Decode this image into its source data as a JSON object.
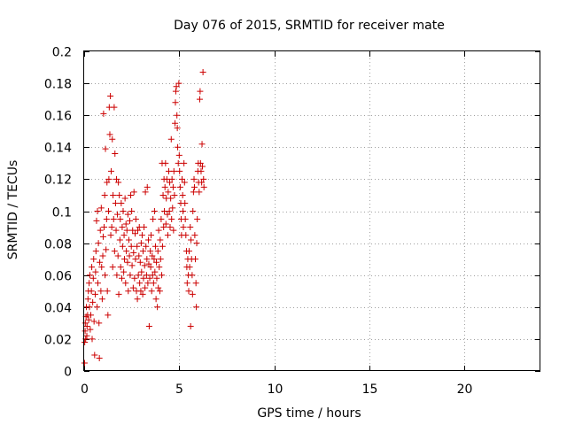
{
  "chart_data": {
    "type": "scatter",
    "title": "Day 076 of 2015, SRMTID for receiver mate",
    "xlabel": "GPS time / hours",
    "ylabel": "SRMTID / TECUs",
    "xlim": [
      0,
      24
    ],
    "ylim": [
      0,
      0.2
    ],
    "xticks": [
      0,
      5,
      10,
      15,
      20
    ],
    "xtick_labels": [
      "0",
      "5",
      "10",
      "15",
      "20"
    ],
    "yticks": [
      0,
      0.02,
      0.04,
      0.06,
      0.08,
      0.1,
      0.12,
      0.14,
      0.16,
      0.18,
      0.2
    ],
    "ytick_labels": [
      "0",
      "0.02",
      "0.04",
      "0.06",
      "0.08",
      "0.1",
      "0.12",
      "0.14",
      "0.16",
      "0.18",
      "0.2"
    ],
    "grid": true,
    "marker": "+",
    "color": "#cc0000",
    "series": [
      {
        "name": "SRMTID",
        "note": "dense cloud of observations from 0 to ~6.3 h (sample of representative points)",
        "points": [
          [
            0.02,
            0.005
          ],
          [
            0.03,
            0.018
          ],
          [
            0.05,
            0.025
          ],
          [
            0.06,
            0.03
          ],
          [
            0.08,
            0.02
          ],
          [
            0.1,
            0.034
          ],
          [
            0.12,
            0.04
          ],
          [
            0.14,
            0.022
          ],
          [
            0.15,
            0.028
          ],
          [
            0.18,
            0.035
          ],
          [
            0.2,
            0.045
          ],
          [
            0.22,
            0.05
          ],
          [
            0.24,
            0.032
          ],
          [
            0.26,
            0.055
          ],
          [
            0.28,
            0.04
          ],
          [
            0.3,
            0.06
          ],
          [
            0.32,
            0.026
          ],
          [
            0.35,
            0.035
          ],
          [
            0.38,
            0.05
          ],
          [
            0.4,
            0.065
          ],
          [
            0.42,
            0.02
          ],
          [
            0.45,
            0.043
          ],
          [
            0.48,
            0.058
          ],
          [
            0.5,
            0.07
          ],
          [
            0.52,
            0.031
          ],
          [
            0.55,
            0.01
          ],
          [
            0.58,
            0.048
          ],
          [
            0.6,
            0.062
          ],
          [
            0.62,
            0.075
          ],
          [
            0.65,
            0.094
          ],
          [
            0.68,
            0.04
          ],
          [
            0.7,
            0.1
          ],
          [
            0.72,
            0.055
          ],
          [
            0.75,
            0.08
          ],
          [
            0.78,
            0.03
          ],
          [
            0.8,
            0.008
          ],
          [
            0.82,
            0.068
          ],
          [
            0.85,
            0.088
          ],
          [
            0.88,
            0.05
          ],
          [
            0.9,
            0.102
          ],
          [
            0.92,
            0.065
          ],
          [
            0.95,
            0.045
          ],
          [
            0.98,
            0.072
          ],
          [
            1.0,
            0.084
          ],
          [
            1.02,
            0.161
          ],
          [
            1.05,
            0.09
          ],
          [
            1.08,
            0.11
          ],
          [
            1.1,
            0.06
          ],
          [
            1.12,
            0.139
          ],
          [
            1.15,
            0.076
          ],
          [
            1.18,
            0.095
          ],
          [
            1.2,
            0.118
          ],
          [
            1.22,
            0.05
          ],
          [
            1.25,
            0.035
          ],
          [
            1.28,
            0.1
          ],
          [
            1.3,
            0.12
          ],
          [
            1.32,
            0.165
          ],
          [
            1.35,
            0.148
          ],
          [
            1.38,
            0.172
          ],
          [
            1.4,
            0.085
          ],
          [
            1.42,
            0.125
          ],
          [
            1.45,
            0.09
          ],
          [
            1.48,
            0.145
          ],
          [
            1.5,
            0.065
          ],
          [
            1.52,
            0.11
          ],
          [
            1.55,
            0.095
          ],
          [
            1.58,
            0.165
          ],
          [
            1.6,
            0.075
          ],
          [
            1.62,
            0.136
          ],
          [
            1.65,
            0.105
          ],
          [
            1.68,
            0.088
          ],
          [
            1.7,
            0.12
          ],
          [
            1.72,
            0.06
          ],
          [
            1.75,
            0.098
          ],
          [
            1.78,
            0.072
          ],
          [
            1.8,
            0.118
          ],
          [
            1.82,
            0.048
          ],
          [
            1.85,
            0.11
          ],
          [
            1.88,
            0.082
          ],
          [
            1.9,
            0.095
          ],
          [
            1.92,
            0.065
          ],
          [
            1.95,
            0.105
          ],
          [
            1.98,
            0.058
          ],
          [
            2.0,
            0.09
          ],
          [
            2.02,
            0.078
          ],
          [
            2.05,
            0.1
          ],
          [
            2.08,
            0.062
          ],
          [
            2.1,
            0.085
          ],
          [
            2.12,
            0.07
          ],
          [
            2.15,
            0.108
          ],
          [
            2.18,
            0.055
          ],
          [
            2.2,
            0.092
          ],
          [
            2.22,
            0.075
          ],
          [
            2.25,
            0.088
          ],
          [
            2.28,
            0.068
          ],
          [
            2.3,
            0.098
          ],
          [
            2.32,
            0.05
          ],
          [
            2.35,
            0.082
          ],
          [
            2.38,
            0.072
          ],
          [
            2.4,
            0.094
          ],
          [
            2.42,
            0.06
          ],
          [
            2.45,
            0.11
          ],
          [
            2.48,
            0.078
          ],
          [
            2.5,
            0.1
          ],
          [
            2.52,
            0.066
          ],
          [
            2.55,
            0.088
          ],
          [
            2.58,
            0.052
          ],
          [
            2.6,
            0.074
          ],
          [
            2.62,
            0.112
          ],
          [
            2.65,
            0.058
          ],
          [
            2.68,
            0.086
          ],
          [
            2.7,
            0.07
          ],
          [
            2.72,
            0.095
          ],
          [
            2.75,
            0.05
          ],
          [
            2.78,
            0.078
          ],
          [
            2.8,
            0.045
          ],
          [
            2.82,
            0.088
          ],
          [
            2.85,
            0.06
          ],
          [
            2.88,
            0.072
          ],
          [
            2.9,
            0.09
          ],
          [
            2.92,
            0.055
          ],
          [
            2.95,
            0.068
          ],
          [
            2.98,
            0.05
          ],
          [
            3.0,
            0.08
          ],
          [
            3.02,
            0.062
          ],
          [
            3.05,
            0.085
          ],
          [
            3.08,
            0.048
          ],
          [
            3.1,
            0.075
          ],
          [
            3.12,
            0.058
          ],
          [
            3.15,
            0.09
          ],
          [
            3.18,
            0.066
          ],
          [
            3.2,
            0.052
          ],
          [
            3.22,
            0.112
          ],
          [
            3.25,
            0.078
          ],
          [
            3.28,
            0.06
          ],
          [
            3.3,
            0.07
          ],
          [
            3.32,
            0.115
          ],
          [
            3.35,
            0.055
          ],
          [
            3.38,
            0.082
          ],
          [
            3.4,
            0.067
          ],
          [
            3.42,
            0.028
          ],
          [
            3.45,
            0.058
          ],
          [
            3.48,
            0.075
          ],
          [
            3.5,
            0.065
          ],
          [
            3.52,
            0.085
          ],
          [
            3.55,
            0.05
          ],
          [
            3.58,
            0.072
          ],
          [
            3.6,
            0.06
          ],
          [
            3.62,
            0.095
          ],
          [
            3.65,
            0.055
          ],
          [
            3.68,
            0.07
          ],
          [
            3.7,
            0.1
          ],
          [
            3.72,
            0.062
          ],
          [
            3.75,
            0.078
          ],
          [
            3.78,
            0.045
          ],
          [
            3.8,
            0.068
          ],
          [
            3.82,
            0.058
          ],
          [
            3.85,
            0.04
          ],
          [
            3.88,
            0.075
          ],
          [
            3.9,
            0.052
          ],
          [
            3.92,
            0.088
          ],
          [
            3.95,
            0.065
          ],
          [
            3.98,
            0.05
          ],
          [
            4.0,
            0.082
          ],
          [
            4.02,
            0.07
          ],
          [
            4.05,
            0.095
          ],
          [
            4.08,
            0.06
          ],
          [
            4.1,
            0.13
          ],
          [
            4.12,
            0.078
          ],
          [
            4.15,
            0.11
          ],
          [
            4.18,
            0.09
          ],
          [
            4.2,
            0.12
          ],
          [
            4.22,
            0.1
          ],
          [
            4.25,
            0.115
          ],
          [
            4.28,
            0.13
          ],
          [
            4.3,
            0.092
          ],
          [
            4.32,
            0.108
          ],
          [
            4.35,
            0.12
          ],
          [
            4.38,
            0.098
          ],
          [
            4.4,
            0.085
          ],
          [
            4.42,
            0.112
          ],
          [
            4.45,
            0.125
          ],
          [
            4.48,
            0.1
          ],
          [
            4.5,
            0.118
          ],
          [
            4.52,
            0.09
          ],
          [
            4.55,
            0.108
          ],
          [
            4.58,
            0.145
          ],
          [
            4.6,
            0.095
          ],
          [
            4.62,
            0.12
          ],
          [
            4.65,
            0.102
          ],
          [
            4.68,
            0.115
          ],
          [
            4.7,
            0.088
          ],
          [
            4.72,
            0.125
          ],
          [
            4.75,
            0.11
          ],
          [
            4.78,
            0.155
          ],
          [
            4.8,
            0.168
          ],
          [
            4.82,
            0.175
          ],
          [
            4.85,
            0.178
          ],
          [
            4.88,
            0.16
          ],
          [
            4.9,
            0.152
          ],
          [
            4.92,
            0.14
          ],
          [
            4.95,
            0.13
          ],
          [
            4.98,
            0.18
          ],
          [
            5.0,
            0.135
          ],
          [
            5.02,
            0.125
          ],
          [
            5.05,
            0.115
          ],
          [
            5.08,
            0.105
          ],
          [
            5.1,
            0.095
          ],
          [
            5.12,
            0.085
          ],
          [
            5.15,
            0.12
          ],
          [
            5.18,
            0.11
          ],
          [
            5.2,
            0.1
          ],
          [
            5.22,
            0.09
          ],
          [
            5.25,
            0.13
          ],
          [
            5.28,
            0.118
          ],
          [
            5.3,
            0.105
          ],
          [
            5.32,
            0.095
          ],
          [
            5.35,
            0.085
          ],
          [
            5.38,
            0.075
          ],
          [
            5.4,
            0.065
          ],
          [
            5.42,
            0.055
          ],
          [
            5.45,
            0.07
          ],
          [
            5.48,
            0.06
          ],
          [
            5.5,
            0.05
          ],
          [
            5.52,
            0.075
          ],
          [
            5.55,
            0.065
          ],
          [
            5.58,
            0.09
          ],
          [
            5.6,
            0.028
          ],
          [
            5.62,
            0.082
          ],
          [
            5.65,
            0.07
          ],
          [
            5.68,
            0.06
          ],
          [
            5.7,
            0.048
          ],
          [
            5.72,
            0.1
          ],
          [
            5.75,
            0.112
          ],
          [
            5.78,
            0.12
          ],
          [
            5.8,
            0.115
          ],
          [
            5.82,
            0.085
          ],
          [
            5.85,
            0.07
          ],
          [
            5.88,
            0.055
          ],
          [
            5.9,
            0.04
          ],
          [
            5.92,
            0.08
          ],
          [
            5.95,
            0.095
          ],
          [
            5.98,
            0.125
          ],
          [
            6.0,
            0.13
          ],
          [
            6.02,
            0.118
          ],
          [
            6.05,
            0.112
          ],
          [
            6.08,
            0.17
          ],
          [
            6.1,
            0.175
          ],
          [
            6.12,
            0.13
          ],
          [
            6.15,
            0.125
          ],
          [
            6.18,
            0.118
          ],
          [
            6.2,
            0.142
          ],
          [
            6.22,
            0.128
          ],
          [
            6.25,
            0.187
          ],
          [
            6.28,
            0.12
          ],
          [
            6.3,
            0.115
          ]
        ]
      }
    ]
  }
}
